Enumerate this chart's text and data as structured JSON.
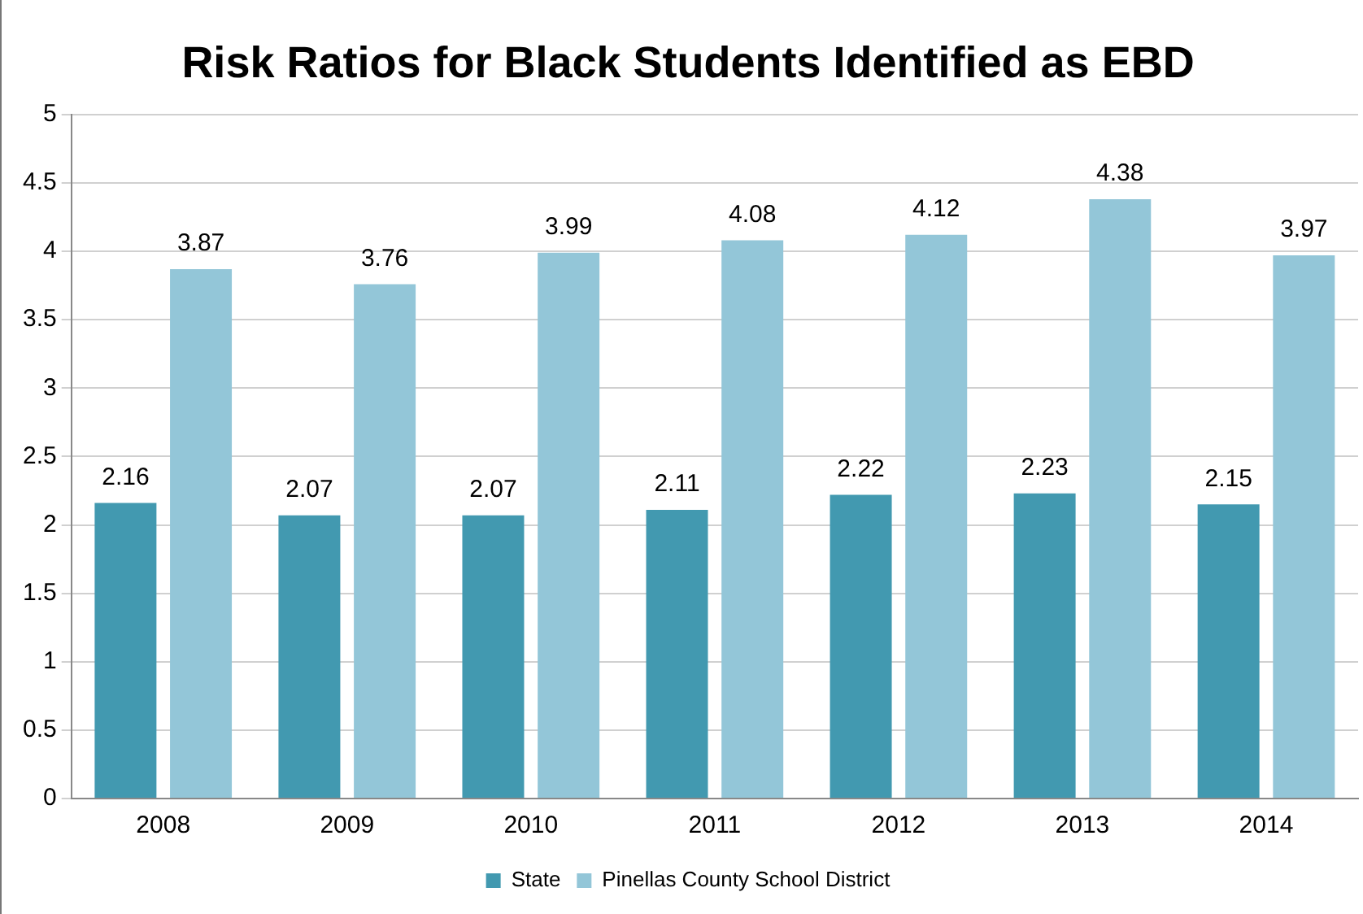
{
  "chart_data": {
    "type": "bar",
    "title": "Risk Ratios for Black Students Identified as EBD",
    "categories": [
      "2008",
      "2009",
      "2010",
      "2011",
      "2012",
      "2013",
      "2014"
    ],
    "series": [
      {
        "name": "State",
        "color": "#4299b0",
        "values": [
          2.16,
          2.07,
          2.07,
          2.11,
          2.22,
          2.23,
          2.15
        ]
      },
      {
        "name": "Pinellas County School District",
        "color": "#93c6d8",
        "values": [
          3.87,
          3.76,
          3.99,
          4.08,
          4.12,
          4.38,
          3.97
        ]
      }
    ],
    "ylim": [
      0,
      5
    ],
    "yticks": [
      0,
      0.5,
      1,
      1.5,
      2,
      2.5,
      3,
      3.5,
      4,
      4.5,
      5
    ],
    "grid": "y",
    "legend": "bottom",
    "data_labels": true
  }
}
